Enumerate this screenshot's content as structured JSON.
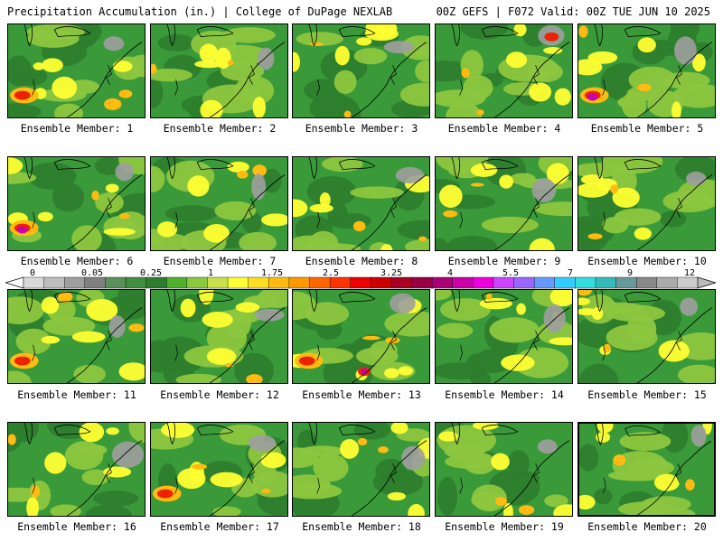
{
  "header": {
    "left_title": "Precipitation Accumulation (in.) | College of DuPage NEXLAB",
    "right_title": "00Z GEFS | F072 Valid: 00Z TUE JUN 10 2025"
  },
  "colorbar": {
    "tick_labels": [
      "0",
      "0.05",
      "0.25",
      "1",
      "1.75",
      "2.5",
      "3.25",
      "4",
      "5.5",
      "7",
      "9",
      "12"
    ],
    "colors": [
      "#d9d9d9",
      "#bdbdbd",
      "#9f9f9f",
      "#808080",
      "#5b8f5b",
      "#3f8f3f",
      "#2e7d2e",
      "#4fb02e",
      "#8dc63f",
      "#c9e04a",
      "#ffff33",
      "#ffdd22",
      "#ffbb11",
      "#ff9900",
      "#ff6600",
      "#ff3300",
      "#ee0000",
      "#cc0000",
      "#aa0022",
      "#990044",
      "#aa0077",
      "#cc00aa",
      "#ee00dd",
      "#cc44ff",
      "#9966ff",
      "#6699ff",
      "#33ccff",
      "#33dddd",
      "#33bbbb",
      "#669999",
      "#888888",
      "#aaaaaa",
      "#cccccc"
    ]
  },
  "members": [
    {
      "label": "Ensemble Member: 1"
    },
    {
      "label": "Ensemble Member: 2"
    },
    {
      "label": "Ensemble Member: 3"
    },
    {
      "label": "Ensemble Member: 4"
    },
    {
      "label": "Ensemble Member: 5"
    },
    {
      "label": "Ensemble Member: 6"
    },
    {
      "label": "Ensemble Member: 7"
    },
    {
      "label": "Ensemble Member: 8"
    },
    {
      "label": "Ensemble Member: 9"
    },
    {
      "label": "Ensemble Member: 10"
    },
    {
      "label": "Ensemble Member: 11"
    },
    {
      "label": "Ensemble Member: 12"
    },
    {
      "label": "Ensemble Member: 13"
    },
    {
      "label": "Ensemble Member: 14"
    },
    {
      "label": "Ensemble Member: 15"
    },
    {
      "label": "Ensemble Member: 16"
    },
    {
      "label": "Ensemble Member: 17"
    },
    {
      "label": "Ensemble Member: 18"
    },
    {
      "label": "Ensemble Member: 19"
    },
    {
      "label": "Ensemble Member: 20"
    }
  ],
  "palette": {
    "base_green": "#3a9a3a",
    "dark_green": "#2e7d2e",
    "light_green": "#8dc63f",
    "yellow": "#ffff33",
    "orange": "#ffbb11",
    "red": "#ee2200",
    "magenta": "#cc00aa",
    "gray": "#9f9f9f",
    "coast": "#000000"
  }
}
